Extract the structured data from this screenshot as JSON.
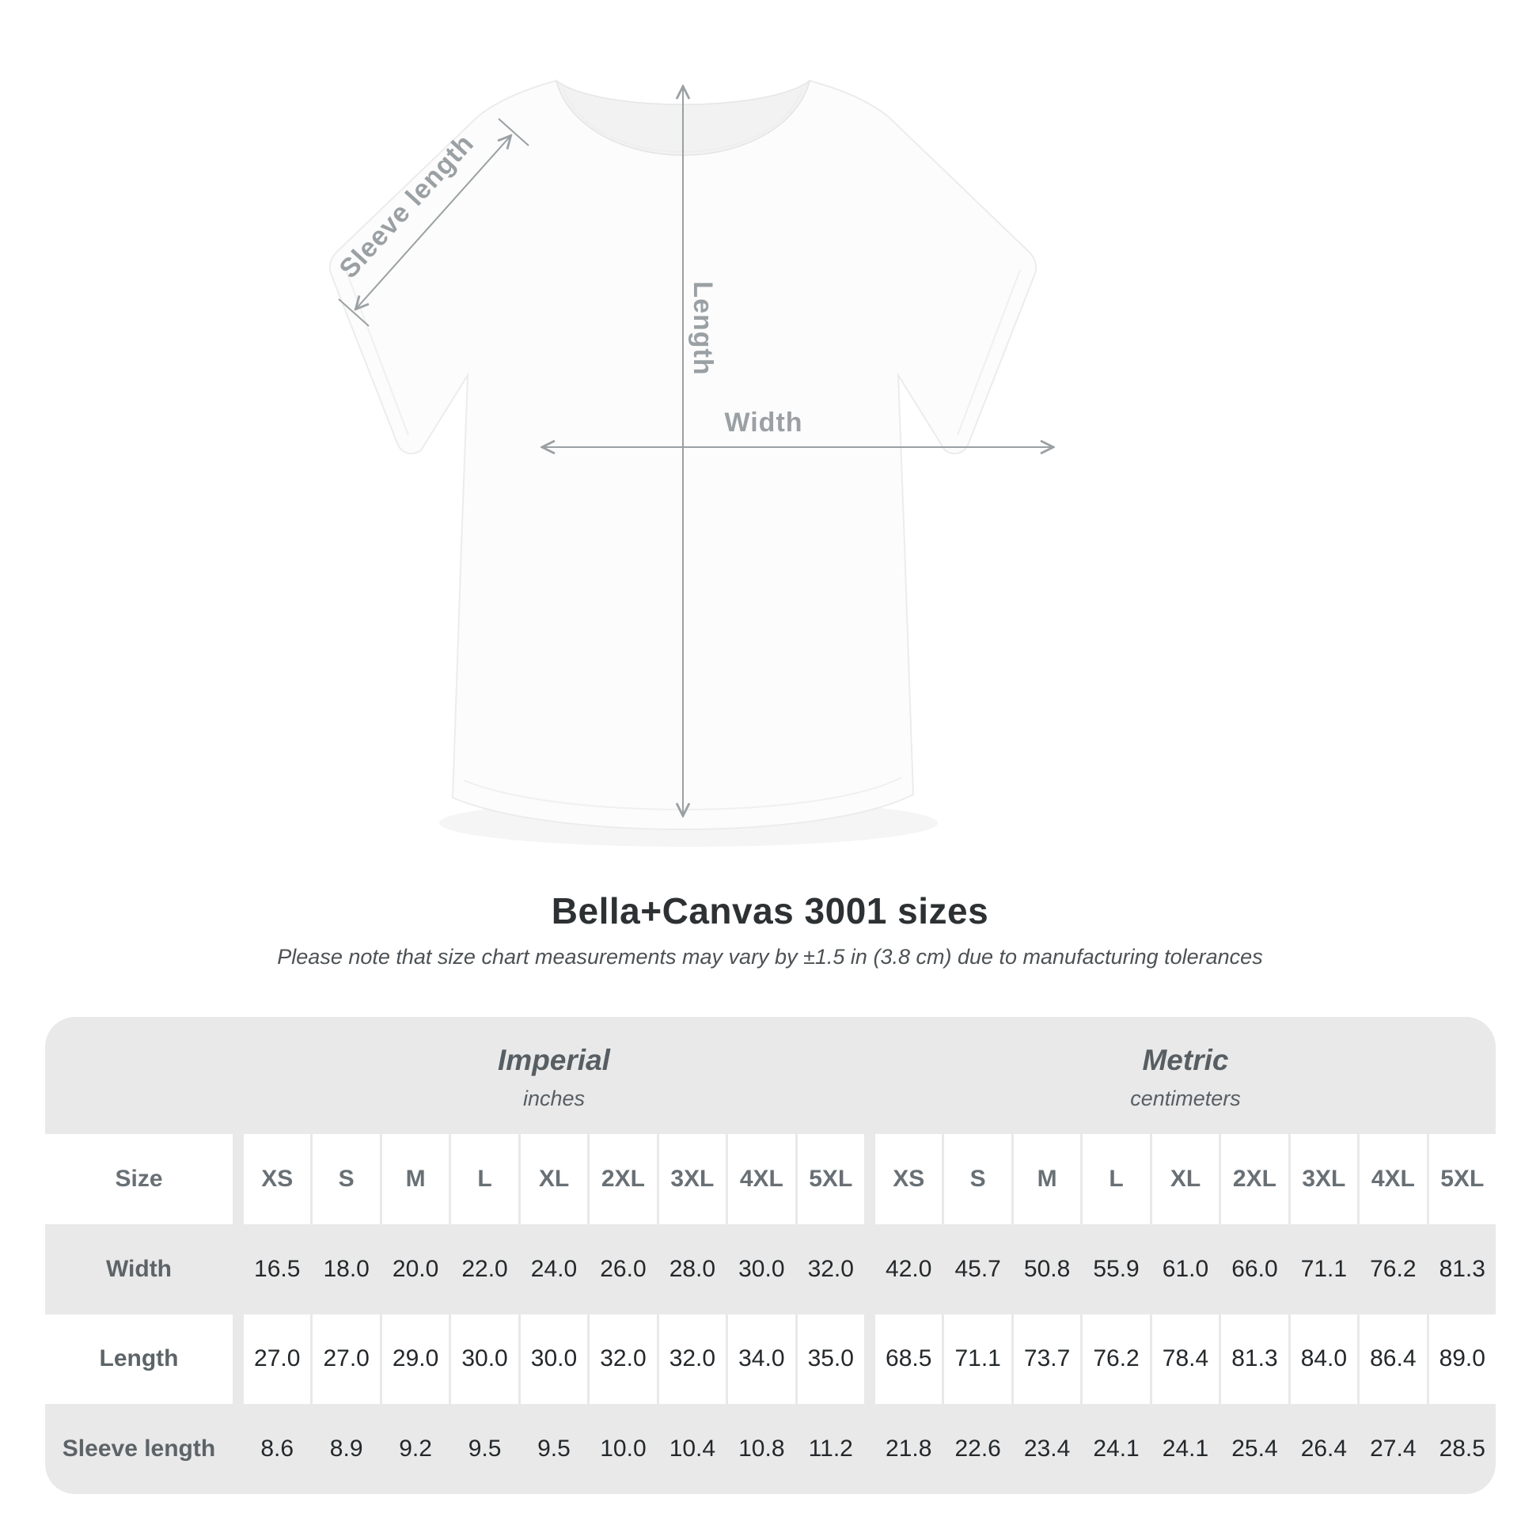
{
  "diagram": {
    "labels": {
      "sleeve_length": "Sleeve length",
      "length": "Length",
      "width": "Width"
    },
    "arrow_color": "#9aa0a3"
  },
  "heading": {
    "title": "Bella+Canvas 3001 sizes",
    "subtitle": "Please note that size chart measurements may vary by ±1.5 in (3.8 cm) due to manufacturing tolerances"
  },
  "table": {
    "size_header": "Size",
    "groups": [
      {
        "name": "Imperial",
        "unit": "inches"
      },
      {
        "name": "Metric",
        "unit": "centimeters"
      }
    ],
    "sizes": [
      "XS",
      "S",
      "M",
      "L",
      "XL",
      "2XL",
      "3XL",
      "4XL",
      "5XL"
    ],
    "rows": [
      {
        "label": "Width",
        "imperial": [
          "16.5",
          "18.0",
          "20.0",
          "22.0",
          "24.0",
          "26.0",
          "28.0",
          "30.0",
          "32.0"
        ],
        "metric": [
          "42.0",
          "45.7",
          "50.8",
          "55.9",
          "61.0",
          "66.0",
          "71.1",
          "76.2",
          "81.3"
        ]
      },
      {
        "label": "Length",
        "imperial": [
          "27.0",
          "27.0",
          "29.0",
          "30.0",
          "30.0",
          "32.0",
          "32.0",
          "34.0",
          "35.0"
        ],
        "metric": [
          "68.5",
          "71.1",
          "73.7",
          "76.2",
          "78.4",
          "81.3",
          "84.0",
          "86.4",
          "89.0"
        ]
      },
      {
        "label": "Sleeve length",
        "imperial": [
          "8.6",
          "8.9",
          "9.2",
          "9.5",
          "9.5",
          "10.0",
          "10.4",
          "10.8",
          "11.2"
        ],
        "metric": [
          "21.8",
          "22.6",
          "23.4",
          "24.1",
          "24.1",
          "25.4",
          "26.4",
          "27.4",
          "28.5"
        ]
      }
    ]
  },
  "chart_data": {
    "type": "table",
    "title": "Bella+Canvas 3001 sizes",
    "note": "Measurements may vary by ±1.5 in (3.8 cm) due to manufacturing tolerances",
    "sizes": [
      "XS",
      "S",
      "M",
      "L",
      "XL",
      "2XL",
      "3XL",
      "4XL",
      "5XL"
    ],
    "imperial_unit": "inches",
    "metric_unit": "centimeters",
    "series": [
      {
        "name": "Width (in)",
        "values": [
          16.5,
          18.0,
          20.0,
          22.0,
          24.0,
          26.0,
          28.0,
          30.0,
          32.0
        ]
      },
      {
        "name": "Length (in)",
        "values": [
          27.0,
          27.0,
          29.0,
          30.0,
          30.0,
          32.0,
          32.0,
          34.0,
          35.0
        ]
      },
      {
        "name": "Sleeve length (in)",
        "values": [
          8.6,
          8.9,
          9.2,
          9.5,
          9.5,
          10.0,
          10.4,
          10.8,
          11.2
        ]
      },
      {
        "name": "Width (cm)",
        "values": [
          42.0,
          45.7,
          50.8,
          55.9,
          61.0,
          66.0,
          71.1,
          76.2,
          81.3
        ]
      },
      {
        "name": "Length (cm)",
        "values": [
          68.5,
          71.1,
          73.7,
          76.2,
          78.4,
          81.3,
          84.0,
          86.4,
          89.0
        ]
      },
      {
        "name": "Sleeve length (cm)",
        "values": [
          21.8,
          22.6,
          23.4,
          24.1,
          24.1,
          25.4,
          26.4,
          27.4,
          28.5
        ]
      }
    ]
  }
}
